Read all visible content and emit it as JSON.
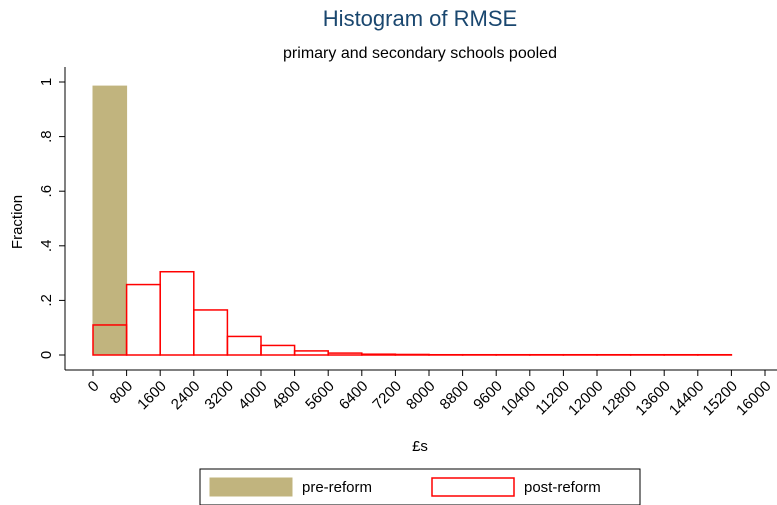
{
  "chart_data": {
    "type": "histogram",
    "title": "Histogram of RMSE",
    "subtitle": "primary and secondary schools pooled",
    "x_label": "£s",
    "y_label": "Fraction",
    "series": [
      {
        "name": "pre-reform",
        "color": "#c1b47e",
        "bins": [
          0,
          800
        ],
        "values": [
          0.985
        ]
      },
      {
        "name": "post-reform",
        "color": "#ff0000",
        "bins": [
          0,
          800,
          1600,
          2400,
          3200,
          4000,
          4800,
          5600,
          6400,
          7200,
          8000,
          8800,
          9600,
          10400,
          11200,
          12000,
          12800,
          13600,
          14400,
          15200
        ],
        "values": [
          0.11,
          0.258,
          0.305,
          0.165,
          0.068,
          0.035,
          0.015,
          0.007,
          0.003,
          0.002,
          0.001,
          0.001,
          0.001,
          0.001,
          0.001,
          0.001,
          0.001,
          0.001,
          0.001
        ]
      }
    ],
    "xlim": [
      0,
      16000
    ],
    "xticks": [
      0,
      800,
      1600,
      2400,
      3200,
      4000,
      4800,
      5600,
      6400,
      7200,
      8000,
      8800,
      9600,
      10400,
      11200,
      12000,
      12800,
      13600,
      14400,
      15200,
      16000
    ],
    "ylim": [
      0,
      1
    ],
    "yticks": [
      0,
      {
        "value": 0.2,
        "label": ".2"
      },
      {
        "value": 0.4,
        "label": ".4"
      },
      {
        "value": 0.6,
        "label": ".6"
      },
      {
        "value": 0.8,
        "label": ".8"
      },
      1
    ],
    "grid": false,
    "legend": "bottom"
  }
}
